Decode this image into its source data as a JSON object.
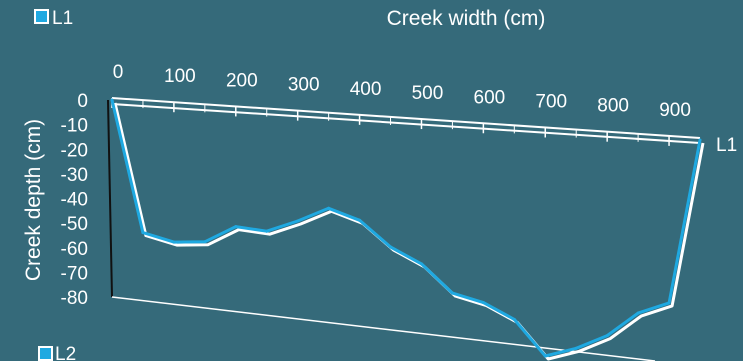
{
  "chart_data": {
    "type": "line",
    "title": "",
    "xlabel": "Creek width (cm)",
    "ylabel": "Creek depth (cm)",
    "xlim": [
      0,
      950
    ],
    "ylim": [
      -80,
      0
    ],
    "x_ticks": [
      "0",
      "100",
      "200",
      "300",
      "400",
      "500",
      "600",
      "700",
      "800",
      "900"
    ],
    "y_ticks": [
      "0",
      "-10",
      "-20",
      "-30",
      "-40",
      "-50",
      "-60",
      "-70",
      "-80"
    ],
    "legend": [
      "L1",
      "L2"
    ],
    "series_label": "L1",
    "series": [
      {
        "name": "L1",
        "color": "#1fa9e1",
        "x": [
          0,
          50,
          100,
          150,
          200,
          250,
          300,
          350,
          400,
          450,
          500,
          550,
          600,
          650,
          700,
          750,
          800,
          850,
          900,
          950
        ],
        "y": [
          0,
          -53,
          -56,
          -55,
          -48,
          -49,
          -44,
          -38,
          -42,
          -52,
          -58,
          -69,
          -72,
          -78,
          -92,
          -88,
          -82,
          -72,
          -67,
          0
        ]
      }
    ]
  }
}
